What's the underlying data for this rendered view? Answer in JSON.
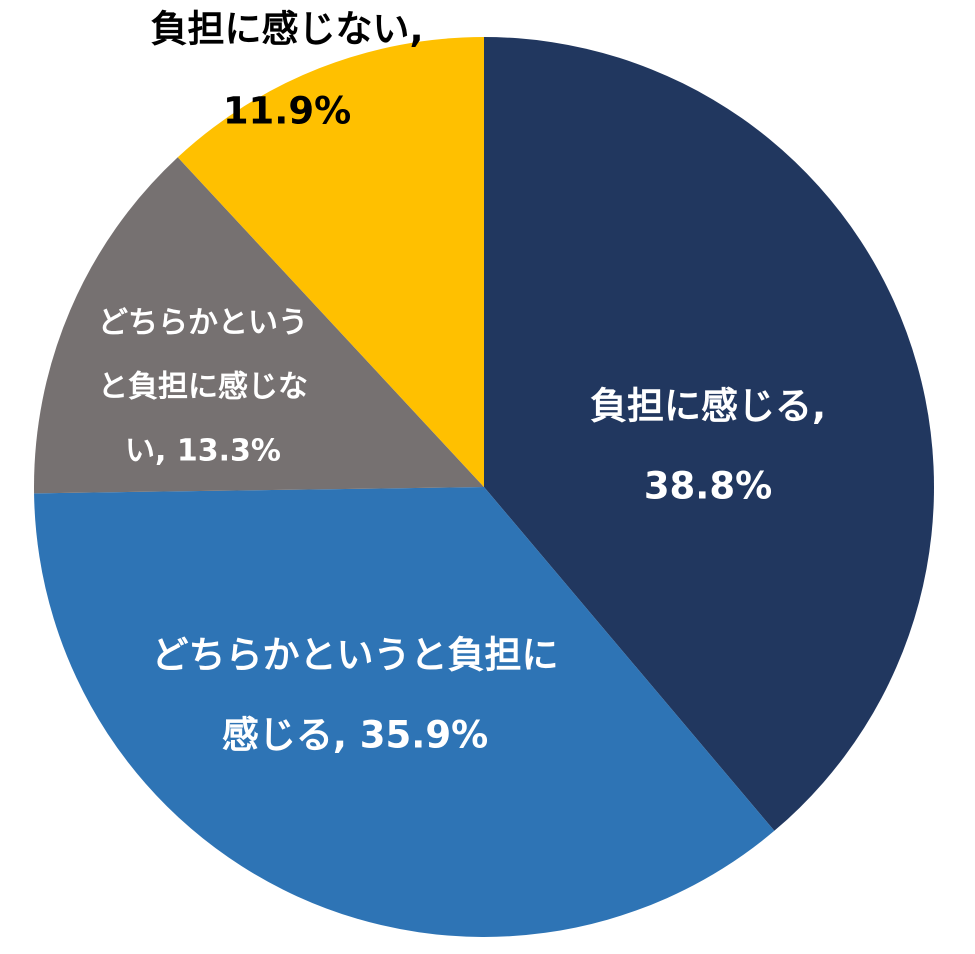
{
  "chart_data": {
    "type": "pie",
    "title": "",
    "start_angle_deg": 0,
    "direction": "clockwise",
    "slices": [
      {
        "label": "負担に感じる",
        "value": 38.8,
        "value_text": "38.8%",
        "color": "#21375F",
        "label_color": "#FFFFFF",
        "label_lines": [
          "負担に感じる,",
          "38.8%"
        ]
      },
      {
        "label": "どちらかというと負担に感じる",
        "value": 35.9,
        "value_text": "35.9%",
        "color": "#2E74B5",
        "label_color": "#FFFFFF",
        "label_lines": [
          "どちらかというと負担に",
          "感じる, 35.9%"
        ]
      },
      {
        "label": "どちらかというと負担に感じない",
        "value": 13.3,
        "value_text": "13.3%",
        "color": "#767171",
        "label_color": "#FFFFFF",
        "label_lines": [
          "どちらかという",
          "と負担に感じな",
          "い, 13.3%"
        ]
      },
      {
        "label": "負担に感じない",
        "value": 11.9,
        "value_text": "11.9%",
        "color": "#FFC000",
        "label_color": "#000000",
        "label_lines": [
          "負担に感じない,",
          "11.9%"
        ]
      }
    ]
  }
}
